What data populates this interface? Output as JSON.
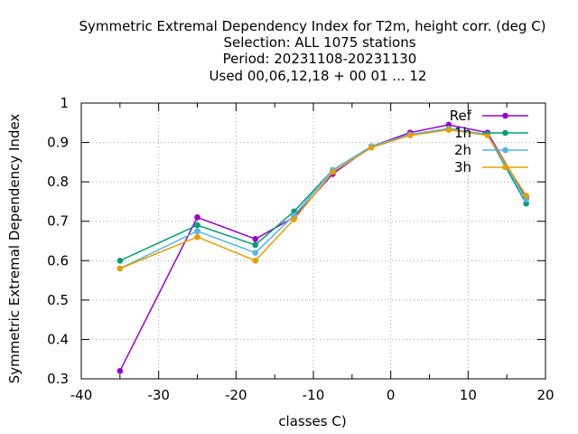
{
  "chart_data": {
    "type": "line",
    "title_lines": [
      "Symmetric Extremal Dependency Index  for T2m, height corr. (deg C)",
      "Selection: ALL   1075 stations",
      "Period: 20231108-20231130",
      "Used  00,06,12,18 + 00 01 ... 12"
    ],
    "xlabel": "classes C)",
    "ylabel": "Symmetric Extremal Dependency Index",
    "xlim": [
      -40,
      20
    ],
    "ylim": [
      0.3,
      1.0
    ],
    "x_ticks": [
      -40,
      -30,
      -20,
      -10,
      0,
      10,
      20
    ],
    "y_ticks": [
      0.3,
      0.4,
      0.5,
      0.6,
      0.7,
      0.8,
      0.9,
      1.0
    ],
    "grid": true,
    "legend_position": "top-right",
    "x": [
      -35,
      -25,
      -17.5,
      -12.5,
      -7.5,
      -2.5,
      2.5,
      7.5,
      12.5,
      17.5
    ],
    "series": [
      {
        "name": "Ref",
        "color": "#9400d3",
        "values": [
          0.32,
          0.71,
          0.655,
          0.71,
          0.82,
          0.89,
          0.925,
          0.945,
          0.925,
          0.76
        ]
      },
      {
        "name": "1h",
        "color": "#009e73",
        "values": [
          0.6,
          0.69,
          0.64,
          0.725,
          0.83,
          0.89,
          0.92,
          0.935,
          0.92,
          0.745
        ]
      },
      {
        "name": "2h",
        "color": "#56b4e9",
        "values": [
          0.58,
          0.675,
          0.62,
          0.715,
          0.83,
          0.89,
          0.92,
          0.935,
          0.92,
          0.755
        ]
      },
      {
        "name": "3h",
        "color": "#e69f00",
        "values": [
          0.58,
          0.66,
          0.6,
          0.705,
          0.825,
          0.887,
          0.918,
          0.932,
          0.918,
          0.765
        ]
      }
    ]
  }
}
